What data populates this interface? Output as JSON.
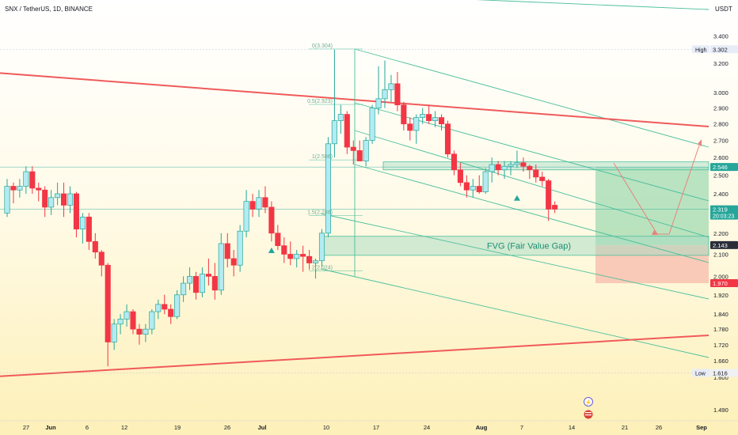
{
  "header": {
    "symbol_line": "SNX / TetherUS, 1D, BINANCE",
    "currency": "USDT"
  },
  "colors": {
    "up": "#b2ebf2",
    "up_border": "#26a69a",
    "down": "#f23645",
    "trendline": "#f05a5a",
    "channel": "#4bbf9c",
    "fvg_fill": "#a5dcc3",
    "tp_fill": "#7fcf9f",
    "sl_fill": "#f6b7a8",
    "bg_top": "#ffffff",
    "bg_bottom": "#fdf3c4"
  },
  "axis": {
    "y_ticks": [
      "3.400",
      "3.200",
      "3.000",
      "2.900",
      "2.800",
      "2.700",
      "2.600",
      "2.500",
      "2.400",
      "2.200",
      "2.100",
      "2.000",
      "1.920",
      "1.840",
      "1.780",
      "1.720",
      "1.660",
      "1.600",
      "1.490"
    ],
    "x_ticks": [
      {
        "label": "27",
        "bold": false
      },
      {
        "label": "Jun",
        "bold": true
      },
      {
        "label": "6",
        "bold": false
      },
      {
        "label": "12",
        "bold": false
      },
      {
        "label": "19",
        "bold": false
      },
      {
        "label": "26",
        "bold": false
      },
      {
        "label": "Jul",
        "bold": true
      },
      {
        "label": "10",
        "bold": false
      },
      {
        "label": "17",
        "bold": false
      },
      {
        "label": "24",
        "bold": false
      },
      {
        "label": "Aug",
        "bold": true
      },
      {
        "label": "7",
        "bold": false
      },
      {
        "label": "14",
        "bold": false
      },
      {
        "label": "21",
        "bold": false
      },
      {
        "label": "26",
        "bold": false
      },
      {
        "label": "Sep",
        "bold": true
      }
    ]
  },
  "price_badges": [
    {
      "label": "High",
      "value": "3.302",
      "style": "high"
    },
    {
      "value": "2.546",
      "style": "green"
    },
    {
      "value": "2.319",
      "extra": "20:03:23",
      "style": "green"
    },
    {
      "value": "2.143",
      "style": "dark"
    },
    {
      "value": "1.970",
      "style": "red"
    },
    {
      "label": "Low",
      "value": "1.616",
      "style": "low"
    }
  ],
  "fib_levels": [
    {
      "label": "0(3.304)",
      "value": 3.304
    },
    {
      "label": "0.5(2.923)",
      "value": 2.923
    },
    {
      "label": "1(2.586)",
      "value": 2.586
    },
    {
      "label": "1.5(2.288)",
      "value": 2.288
    },
    {
      "label": "2(2.024)",
      "value": 2.024
    }
  ],
  "annotations": {
    "fvg_label": "FVG (Fair Value Gap)"
  },
  "chart_data": {
    "type": "candlestick",
    "title": "SNX / TetherUS, 1D, BINANCE",
    "y_scale": "log",
    "ylim": [
      1.47,
      3.55
    ],
    "grid": false,
    "candles": [
      {
        "o": 2.3,
        "h": 2.48,
        "l": 2.28,
        "c": 2.44
      },
      {
        "o": 2.44,
        "h": 2.46,
        "l": 2.35,
        "c": 2.42
      },
      {
        "o": 2.42,
        "h": 2.48,
        "l": 2.38,
        "c": 2.44
      },
      {
        "o": 2.44,
        "h": 2.55,
        "l": 2.4,
        "c": 2.52
      },
      {
        "o": 2.52,
        "h": 2.55,
        "l": 2.4,
        "c": 2.43
      },
      {
        "o": 2.43,
        "h": 2.46,
        "l": 2.36,
        "c": 2.42
      },
      {
        "o": 2.42,
        "h": 2.44,
        "l": 2.28,
        "c": 2.33
      },
      {
        "o": 2.33,
        "h": 2.42,
        "l": 2.29,
        "c": 2.38
      },
      {
        "o": 2.38,
        "h": 2.46,
        "l": 2.34,
        "c": 2.4
      },
      {
        "o": 2.4,
        "h": 2.46,
        "l": 2.28,
        "c": 2.34
      },
      {
        "o": 2.34,
        "h": 2.44,
        "l": 2.3,
        "c": 2.4
      },
      {
        "o": 2.4,
        "h": 2.41,
        "l": 2.18,
        "c": 2.22
      },
      {
        "o": 2.22,
        "h": 2.3,
        "l": 2.15,
        "c": 2.28
      },
      {
        "o": 2.28,
        "h": 2.3,
        "l": 2.12,
        "c": 2.16
      },
      {
        "o": 2.16,
        "h": 2.2,
        "l": 2.08,
        "c": 2.11
      },
      {
        "o": 2.11,
        "h": 2.12,
        "l": 2.0,
        "c": 2.05
      },
      {
        "o": 2.05,
        "h": 2.06,
        "l": 1.64,
        "c": 1.73
      },
      {
        "o": 1.73,
        "h": 1.82,
        "l": 1.7,
        "c": 1.8
      },
      {
        "o": 1.8,
        "h": 1.84,
        "l": 1.76,
        "c": 1.82
      },
      {
        "o": 1.82,
        "h": 1.88,
        "l": 1.79,
        "c": 1.85
      },
      {
        "o": 1.85,
        "h": 1.86,
        "l": 1.76,
        "c": 1.78
      },
      {
        "o": 1.78,
        "h": 1.8,
        "l": 1.72,
        "c": 1.76
      },
      {
        "o": 1.76,
        "h": 1.8,
        "l": 1.73,
        "c": 1.78
      },
      {
        "o": 1.78,
        "h": 1.86,
        "l": 1.76,
        "c": 1.85
      },
      {
        "o": 1.85,
        "h": 1.9,
        "l": 1.82,
        "c": 1.88
      },
      {
        "o": 1.88,
        "h": 1.92,
        "l": 1.84,
        "c": 1.86
      },
      {
        "o": 1.86,
        "h": 1.88,
        "l": 1.8,
        "c": 1.83
      },
      {
        "o": 1.83,
        "h": 1.94,
        "l": 1.82,
        "c": 1.92
      },
      {
        "o": 1.92,
        "h": 2.0,
        "l": 1.89,
        "c": 1.97
      },
      {
        "o": 1.97,
        "h": 2.04,
        "l": 1.94,
        "c": 2.0
      },
      {
        "o": 2.0,
        "h": 2.02,
        "l": 1.9,
        "c": 1.93
      },
      {
        "o": 1.93,
        "h": 2.04,
        "l": 1.91,
        "c": 2.01
      },
      {
        "o": 2.01,
        "h": 2.08,
        "l": 1.96,
        "c": 2.0
      },
      {
        "o": 2.0,
        "h": 2.06,
        "l": 1.9,
        "c": 1.94
      },
      {
        "o": 1.94,
        "h": 2.2,
        "l": 1.92,
        "c": 2.15
      },
      {
        "o": 2.15,
        "h": 2.2,
        "l": 2.04,
        "c": 2.08
      },
      {
        "o": 2.08,
        "h": 2.12,
        "l": 2.0,
        "c": 2.05
      },
      {
        "o": 2.05,
        "h": 2.24,
        "l": 2.02,
        "c": 2.21
      },
      {
        "o": 2.21,
        "h": 2.42,
        "l": 2.18,
        "c": 2.36
      },
      {
        "o": 2.36,
        "h": 2.4,
        "l": 2.28,
        "c": 2.32
      },
      {
        "o": 2.32,
        "h": 2.42,
        "l": 2.28,
        "c": 2.38
      },
      {
        "o": 2.38,
        "h": 2.44,
        "l": 2.3,
        "c": 2.33
      },
      {
        "o": 2.33,
        "h": 2.36,
        "l": 2.16,
        "c": 2.2
      },
      {
        "o": 2.2,
        "h": 2.24,
        "l": 2.12,
        "c": 2.14
      },
      {
        "o": 2.14,
        "h": 2.18,
        "l": 2.06,
        "c": 2.1
      },
      {
        "o": 2.1,
        "h": 2.16,
        "l": 2.05,
        "c": 2.08
      },
      {
        "o": 2.08,
        "h": 2.12,
        "l": 2.04,
        "c": 2.1
      },
      {
        "o": 2.1,
        "h": 2.14,
        "l": 2.02,
        "c": 2.09
      },
      {
        "o": 2.09,
        "h": 2.12,
        "l": 2.03,
        "c": 2.06
      },
      {
        "o": 2.06,
        "h": 2.08,
        "l": 1.99,
        "c": 2.07
      },
      {
        "o": 2.07,
        "h": 2.22,
        "l": 2.04,
        "c": 2.2
      },
      {
        "o": 2.2,
        "h": 2.72,
        "l": 2.18,
        "c": 2.68
      },
      {
        "o": 2.68,
        "h": 3.3,
        "l": 2.6,
        "c": 2.82
      },
      {
        "o": 2.82,
        "h": 2.92,
        "l": 2.74,
        "c": 2.86
      },
      {
        "o": 2.86,
        "h": 2.88,
        "l": 2.62,
        "c": 2.66
      },
      {
        "o": 2.66,
        "h": 2.7,
        "l": 2.56,
        "c": 2.64
      },
      {
        "o": 2.64,
        "h": 2.7,
        "l": 2.58,
        "c": 2.58
      },
      {
        "o": 2.58,
        "h": 2.72,
        "l": 2.55,
        "c": 2.7
      },
      {
        "o": 2.7,
        "h": 2.92,
        "l": 2.68,
        "c": 2.9
      },
      {
        "o": 2.9,
        "h": 3.18,
        "l": 2.86,
        "c": 2.96
      },
      {
        "o": 2.96,
        "h": 3.22,
        "l": 2.9,
        "c": 3.02
      },
      {
        "o": 3.02,
        "h": 3.12,
        "l": 2.94,
        "c": 3.06
      },
      {
        "o": 3.06,
        "h": 3.14,
        "l": 2.88,
        "c": 2.92
      },
      {
        "o": 2.92,
        "h": 2.94,
        "l": 2.76,
        "c": 2.8
      },
      {
        "o": 2.8,
        "h": 2.84,
        "l": 2.7,
        "c": 2.76
      },
      {
        "o": 2.76,
        "h": 2.86,
        "l": 2.68,
        "c": 2.84
      },
      {
        "o": 2.84,
        "h": 2.9,
        "l": 2.8,
        "c": 2.86
      },
      {
        "o": 2.86,
        "h": 2.92,
        "l": 2.8,
        "c": 2.82
      },
      {
        "o": 2.82,
        "h": 2.88,
        "l": 2.78,
        "c": 2.84
      },
      {
        "o": 2.84,
        "h": 2.86,
        "l": 2.76,
        "c": 2.8
      },
      {
        "o": 2.8,
        "h": 2.82,
        "l": 2.6,
        "c": 2.62
      },
      {
        "o": 2.62,
        "h": 2.64,
        "l": 2.5,
        "c": 2.53
      },
      {
        "o": 2.53,
        "h": 2.57,
        "l": 2.44,
        "c": 2.46
      },
      {
        "o": 2.46,
        "h": 2.5,
        "l": 2.38,
        "c": 2.42
      },
      {
        "o": 2.42,
        "h": 2.48,
        "l": 2.38,
        "c": 2.44
      },
      {
        "o": 2.44,
        "h": 2.5,
        "l": 2.4,
        "c": 2.41
      },
      {
        "o": 2.41,
        "h": 2.54,
        "l": 2.4,
        "c": 2.52
      },
      {
        "o": 2.52,
        "h": 2.6,
        "l": 2.46,
        "c": 2.56
      },
      {
        "o": 2.56,
        "h": 2.58,
        "l": 2.5,
        "c": 2.53
      },
      {
        "o": 2.53,
        "h": 2.58,
        "l": 2.48,
        "c": 2.55
      },
      {
        "o": 2.55,
        "h": 2.58,
        "l": 2.5,
        "c": 2.56
      },
      {
        "o": 2.56,
        "h": 2.64,
        "l": 2.54,
        "c": 2.57
      },
      {
        "o": 2.57,
        "h": 2.6,
        "l": 2.52,
        "c": 2.55
      },
      {
        "o": 2.55,
        "h": 2.56,
        "l": 2.48,
        "c": 2.53
      },
      {
        "o": 2.53,
        "h": 2.56,
        "l": 2.46,
        "c": 2.49
      },
      {
        "o": 2.49,
        "h": 2.52,
        "l": 2.44,
        "c": 2.47
      },
      {
        "o": 2.47,
        "h": 2.48,
        "l": 2.26,
        "c": 2.32
      },
      {
        "o": 2.34,
        "h": 2.36,
        "l": 2.3,
        "c": 2.32
      }
    ]
  }
}
